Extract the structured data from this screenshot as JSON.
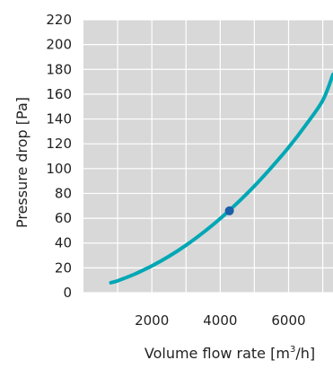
{
  "chart_data": {
    "type": "line",
    "title": "",
    "xlabel": "Volume flow rate [m",
    "xlabel_superscript": "3",
    "xlabel_suffix": "/h]",
    "ylabel": "Pressure drop [Pa]",
    "xlim": [
      0,
      7300
    ],
    "ylim": [
      0,
      220
    ],
    "x_ticks": [
      2000,
      4000,
      6000
    ],
    "x_tick_labels": [
      "2000",
      "4000",
      "6000"
    ],
    "x_grid_lines": [
      1000,
      2000,
      3000,
      4000,
      5000,
      6000,
      7000
    ],
    "y_ticks": [
      0,
      20,
      40,
      60,
      80,
      100,
      120,
      140,
      160,
      180,
      200,
      220
    ],
    "y_tick_labels": [
      "0",
      "20",
      "40",
      "60",
      "80",
      "100",
      "120",
      "140",
      "160",
      "180",
      "200",
      "220"
    ],
    "grid": true,
    "series": [
      {
        "color": "#00a7b5",
        "x": [
          800,
          1000,
          1500,
          2000,
          2500,
          3000,
          3500,
          4000,
          4500,
          5000,
          5500,
          6000,
          6500,
          7000,
          7300
        ],
        "y": [
          8,
          9.6,
          15,
          21.6,
          29.3,
          38.2,
          48.4,
          59.7,
          72.3,
          86,
          101,
          117,
          135,
          155,
          176
        ]
      }
    ],
    "marker": {
      "x": 4270,
      "y": 66,
      "color": "#1a5fa8"
    }
  }
}
